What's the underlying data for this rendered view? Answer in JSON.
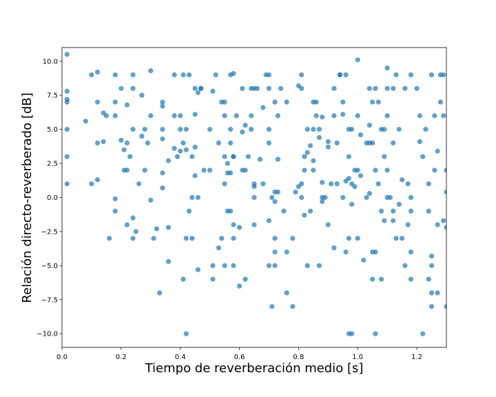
{
  "chart_data": {
    "type": "scatter",
    "title": "",
    "xlabel": "Tiempo de reverberación medio [s]",
    "ylabel": "Relación directo-reverberado [dB]",
    "xlim": [
      0.0,
      1.3
    ],
    "ylim": [
      -11.0,
      11.0
    ],
    "xticks": [
      0.0,
      0.2,
      0.4,
      0.6,
      0.8,
      1.0,
      1.2
    ],
    "xtick_labels": [
      "0.0",
      "0.2",
      "0.4",
      "0.6",
      "0.8",
      "1.0",
      "1.2"
    ],
    "yticks": [
      -10.0,
      -7.5,
      -5.0,
      -2.5,
      0.0,
      2.5,
      5.0,
      7.5,
      10.0
    ],
    "ytick_labels": [
      "−10.0",
      "−7.5",
      "−5.0",
      "−2.5",
      "0.0",
      "2.5",
      "5.0",
      "7.5",
      "10.0"
    ],
    "grid": false,
    "marker_color": "#1f77b4",
    "marker_alpha": 0.7,
    "points": [
      [
        0.017,
        10.5
      ],
      [
        0.017,
        7.8
      ],
      [
        0.017,
        7.0
      ],
      [
        0.017,
        7.2
      ],
      [
        0.017,
        5.0
      ],
      [
        0.017,
        3.0
      ],
      [
        0.017,
        1.0
      ],
      [
        0.08,
        5.6
      ],
      [
        0.1,
        9.0
      ],
      [
        0.1,
        1.0
      ],
      [
        0.12,
        9.2
      ],
      [
        0.12,
        7.0
      ],
      [
        0.12,
        4.0
      ],
      [
        0.12,
        1.3
      ],
      [
        0.14,
        6.2
      ],
      [
        0.14,
        4.1
      ],
      [
        0.15,
        6.0
      ],
      [
        0.16,
        -3.0
      ],
      [
        0.18,
        9.0
      ],
      [
        0.18,
        7.0
      ],
      [
        0.18,
        6.0
      ],
      [
        0.18,
        -0.1
      ],
      [
        0.18,
        -1.0
      ],
      [
        0.2,
        8.0
      ],
      [
        0.2,
        4.2
      ],
      [
        0.21,
        3.5
      ],
      [
        0.21,
        2.0
      ],
      [
        0.22,
        6.8
      ],
      [
        0.22,
        4.0
      ],
      [
        0.22,
        2.0
      ],
      [
        0.22,
        -2.0
      ],
      [
        0.23,
        3.0
      ],
      [
        0.24,
        9.0
      ],
      [
        0.24,
        8.0
      ],
      [
        0.24,
        5.0
      ],
      [
        0.24,
        -1.5
      ],
      [
        0.24,
        -3.0
      ],
      [
        0.25,
        -2.5
      ],
      [
        0.26,
        1.0
      ],
      [
        0.27,
        7.5
      ],
      [
        0.27,
        4.5
      ],
      [
        0.28,
        5.0
      ],
      [
        0.28,
        2.0
      ],
      [
        0.29,
        4.0
      ],
      [
        0.3,
        9.3
      ],
      [
        0.3,
        6.0
      ],
      [
        0.3,
        -0.2
      ],
      [
        0.31,
        -3.0
      ],
      [
        0.32,
        -2.3
      ],
      [
        0.33,
        -7.0
      ],
      [
        0.34,
        7.0
      ],
      [
        0.34,
        6.7
      ],
      [
        0.34,
        5.0
      ],
      [
        0.34,
        4.3
      ],
      [
        0.34,
        1.8
      ],
      [
        0.34,
        0.7
      ],
      [
        0.36,
        2.7
      ],
      [
        0.36,
        -2.2
      ],
      [
        0.36,
        -4.7
      ],
      [
        0.38,
        9.0
      ],
      [
        0.38,
        6.0
      ],
      [
        0.38,
        3.6
      ],
      [
        0.39,
        3.0
      ],
      [
        0.4,
        6.0
      ],
      [
        0.4,
        5.0
      ],
      [
        0.4,
        3.4
      ],
      [
        0.41,
        9.0
      ],
      [
        0.41,
        4.0
      ],
      [
        0.41,
        -6.0
      ],
      [
        0.42,
        5.0
      ],
      [
        0.42,
        3.5
      ],
      [
        0.42,
        -3.0
      ],
      [
        0.42,
        -10.0
      ],
      [
        0.43,
        9.0
      ],
      [
        0.43,
        -1.0
      ],
      [
        0.44,
        3.0
      ],
      [
        0.44,
        0.0
      ],
      [
        0.44,
        -3.0
      ],
      [
        0.45,
        8.0
      ],
      [
        0.45,
        6.1
      ],
      [
        0.45,
        3.7
      ],
      [
        0.45,
        1.6
      ],
      [
        0.46,
        7.7
      ],
      [
        0.46,
        0.0
      ],
      [
        0.46,
        -5.3
      ],
      [
        0.47,
        8.0
      ],
      [
        0.47,
        8.0
      ],
      [
        0.48,
        2.0
      ],
      [
        0.5,
        5.0
      ],
      [
        0.5,
        2.0
      ],
      [
        0.51,
        7.8
      ],
      [
        0.51,
        -5.0
      ],
      [
        0.51,
        -6.0
      ],
      [
        0.52,
        9.0
      ],
      [
        0.53,
        4.0
      ],
      [
        0.53,
        -3.7
      ],
      [
        0.54,
        7.0
      ],
      [
        0.54,
        -3.0
      ],
      [
        0.55,
        7.0
      ],
      [
        0.55,
        6.0
      ],
      [
        0.55,
        3.0
      ],
      [
        0.55,
        1.0
      ],
      [
        0.55,
        -5.0
      ],
      [
        0.56,
        2.5
      ],
      [
        0.56,
        1.8
      ],
      [
        0.56,
        -1.0
      ],
      [
        0.57,
        9.0
      ],
      [
        0.57,
        5.0
      ],
      [
        0.57,
        4.0
      ],
      [
        0.57,
        1.8
      ],
      [
        0.57,
        -1.0
      ],
      [
        0.58,
        9.1
      ],
      [
        0.58,
        3.0
      ],
      [
        0.58,
        3.0
      ],
      [
        0.58,
        -2.0
      ],
      [
        0.58,
        -3.0
      ],
      [
        0.58,
        -5.0
      ],
      [
        0.59,
        6.0
      ],
      [
        0.6,
        -2.2
      ],
      [
        0.6,
        -6.5
      ],
      [
        0.61,
        8.0
      ],
      [
        0.61,
        4.8
      ],
      [
        0.61,
        2.0
      ],
      [
        0.62,
        2.0
      ],
      [
        0.62,
        5.3
      ],
      [
        0.62,
        -6.0
      ],
      [
        0.63,
        3.0
      ],
      [
        0.64,
        8.0
      ],
      [
        0.64,
        6.0
      ],
      [
        0.64,
        5.0
      ],
      [
        0.65,
        8.0
      ],
      [
        0.65,
        1.0
      ],
      [
        0.65,
        0.8
      ],
      [
        0.65,
        0.0
      ],
      [
        0.65,
        -2.0
      ],
      [
        0.66,
        8.0
      ],
      [
        0.67,
        2.8
      ],
      [
        0.68,
        1.0
      ],
      [
        0.68,
        6.6
      ],
      [
        0.69,
        9.0
      ],
      [
        0.7,
        9.0
      ],
      [
        0.7,
        8.0
      ],
      [
        0.7,
        5.0
      ],
      [
        0.7,
        4.0
      ],
      [
        0.7,
        -1.7
      ],
      [
        0.7,
        -5.0
      ],
      [
        0.71,
        -8.0
      ],
      [
        0.71,
        0.0
      ],
      [
        0.72,
        7.0
      ],
      [
        0.72,
        0.4
      ],
      [
        0.72,
        -0.3
      ],
      [
        0.72,
        -3.0
      ],
      [
        0.72,
        -4.0
      ],
      [
        0.72,
        -5.0
      ],
      [
        0.73,
        6.0
      ],
      [
        0.73,
        2.8
      ],
      [
        0.73,
        0.4
      ],
      [
        0.74,
        8.0
      ],
      [
        0.75,
        -1.0
      ],
      [
        0.76,
        7.0
      ],
      [
        0.76,
        -4.0
      ],
      [
        0.76,
        -7.0
      ],
      [
        0.78,
        -3.0
      ],
      [
        0.78,
        -8.0
      ],
      [
        0.79,
        0.4
      ],
      [
        0.8,
        8.2
      ],
      [
        0.8,
        0.8
      ],
      [
        0.81,
        9.0
      ],
      [
        0.81,
        8.0
      ],
      [
        0.81,
        1.0
      ],
      [
        0.81,
        0.0
      ],
      [
        0.82,
        3.0
      ],
      [
        0.82,
        2.0
      ],
      [
        0.82,
        -1.3
      ],
      [
        0.83,
        5.0
      ],
      [
        0.83,
        3.3
      ],
      [
        0.83,
        -5.0
      ],
      [
        0.84,
        3.8
      ],
      [
        0.84,
        -1.0
      ],
      [
        0.85,
        7.0
      ],
      [
        0.85,
        5.0
      ],
      [
        0.85,
        2.7
      ],
      [
        0.85,
        2.0
      ],
      [
        0.86,
        7.0
      ],
      [
        0.86,
        6.0
      ],
      [
        0.87,
        5.0
      ],
      [
        0.87,
        4.4
      ],
      [
        0.87,
        -5.0
      ],
      [
        0.88,
        5.9
      ],
      [
        0.88,
        1.1
      ],
      [
        0.88,
        0.0
      ],
      [
        0.88,
        -0.3
      ],
      [
        0.89,
        0.0
      ],
      [
        0.9,
        4.1
      ],
      [
        0.9,
        3.7
      ],
      [
        0.9,
        -2.0
      ],
      [
        0.91,
        1.0
      ],
      [
        0.92,
        8.0
      ],
      [
        0.92,
        6.0
      ],
      [
        0.92,
        -3.7
      ],
      [
        0.93,
        4.0
      ],
      [
        0.93,
        1.0
      ],
      [
        0.94,
        9.0
      ],
      [
        0.94,
        9.0
      ],
      [
        0.95,
        7.0
      ],
      [
        0.95,
        6.1
      ],
      [
        0.95,
        0.0
      ],
      [
        0.96,
        9.0
      ],
      [
        0.96,
        1.2
      ],
      [
        0.96,
        -4.0
      ],
      [
        0.97,
        5.0
      ],
      [
        0.97,
        3.0
      ],
      [
        0.97,
        1.4
      ],
      [
        0.97,
        -3.0
      ],
      [
        0.97,
        -10.0
      ],
      [
        0.98,
        5.0
      ],
      [
        0.98,
        1.0
      ],
      [
        0.98,
        -0.5
      ],
      [
        0.98,
        -10.0
      ],
      [
        0.99,
        2.0
      ],
      [
        0.99,
        0.8
      ],
      [
        1.0,
        10.1
      ],
      [
        1.0,
        6.0
      ],
      [
        1.0,
        2.0
      ],
      [
        1.0,
        -3.0
      ],
      [
        1.01,
        4.6
      ],
      [
        1.01,
        1.6
      ],
      [
        1.02,
        -4.6
      ],
      [
        1.03,
        4.0
      ],
      [
        1.03,
        0.0
      ],
      [
        1.04,
        8.0
      ],
      [
        1.04,
        5.3
      ],
      [
        1.04,
        4.0
      ],
      [
        1.04,
        0.3
      ],
      [
        1.05,
        7.0
      ],
      [
        1.05,
        4.0
      ],
      [
        1.05,
        -4.0
      ],
      [
        1.05,
        -6.0
      ],
      [
        1.06,
        8.0
      ],
      [
        1.06,
        2.0
      ],
      [
        1.06,
        -4.0
      ],
      [
        1.06,
        -10.0
      ],
      [
        1.07,
        7.0
      ],
      [
        1.07,
        1.0
      ],
      [
        1.08,
        5.0
      ],
      [
        1.08,
        -1.0
      ],
      [
        1.08,
        -6.0
      ],
      [
        1.09,
        5.0
      ],
      [
        1.09,
        3.0
      ],
      [
        1.09,
        -1.7
      ],
      [
        1.1,
        9.5
      ],
      [
        1.1,
        8.0
      ],
      [
        1.1,
        6.0
      ],
      [
        1.1,
        2.0
      ],
      [
        1.1,
        0.0
      ],
      [
        1.11,
        0.0
      ],
      [
        1.12,
        8.0
      ],
      [
        1.12,
        4.0
      ],
      [
        1.12,
        -1.0
      ],
      [
        1.12,
        -1.7
      ],
      [
        1.13,
        9.0
      ],
      [
        1.13,
        -3.0
      ],
      [
        1.14,
        5.0
      ],
      [
        1.14,
        -0.5
      ],
      [
        1.15,
        1.3
      ],
      [
        1.15,
        -3.0
      ],
      [
        1.16,
        8.0
      ],
      [
        1.16,
        -5.0
      ],
      [
        1.17,
        1.0
      ],
      [
        1.17,
        -2.0
      ],
      [
        1.18,
        9.0
      ],
      [
        1.18,
        0.0
      ],
      [
        1.18,
        -1.0
      ],
      [
        1.18,
        -4.0
      ],
      [
        1.18,
        -6.0
      ],
      [
        1.2,
        8.0
      ],
      [
        1.21,
        6.0
      ],
      [
        1.21,
        4.1
      ],
      [
        1.22,
        3.0
      ],
      [
        1.22,
        -10.0
      ],
      [
        1.23,
        5.0
      ],
      [
        1.24,
        1.0
      ],
      [
        1.24,
        -1.0
      ],
      [
        1.24,
        -6.0
      ],
      [
        1.25,
        9.0
      ],
      [
        1.25,
        -4.3
      ],
      [
        1.25,
        -5.0
      ],
      [
        1.25,
        -7.0
      ],
      [
        1.25,
        -8.0
      ],
      [
        1.26,
        6.0
      ],
      [
        1.26,
        2.0
      ],
      [
        1.27,
        3.4
      ],
      [
        1.27,
        -7.0
      ],
      [
        1.27,
        -2.0
      ],
      [
        1.28,
        9.0
      ],
      [
        1.28,
        7.0
      ],
      [
        1.29,
        9.0
      ],
      [
        1.29,
        6.0
      ],
      [
        1.29,
        -1.7
      ],
      [
        1.3,
        2.0
      ],
      [
        1.3,
        0.4
      ],
      [
        1.3,
        -2.2
      ],
      [
        1.3,
        -8.0
      ]
    ]
  }
}
